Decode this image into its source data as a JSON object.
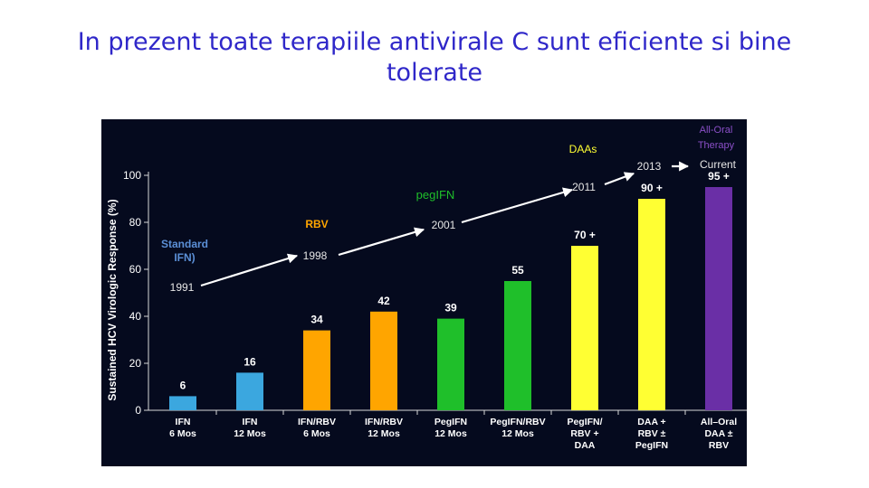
{
  "slide": {
    "title_line1": "In prezent toate terapiile antivirale C sunt eficiente si bine",
    "title_line2": "tolerate",
    "title_color": "#2f27c9"
  },
  "chart_data": {
    "type": "bar",
    "ylabel": "Sustained HCV Virologic Response (%)",
    "ylim": [
      0,
      100
    ],
    "yticks": [
      0,
      20,
      40,
      60,
      80,
      100
    ],
    "background": "#050a1e",
    "categories": [
      {
        "line1": "IFN",
        "line2": "6 Mos",
        "line3": ""
      },
      {
        "line1": "IFN",
        "line2": "12 Mos",
        "line3": ""
      },
      {
        "line1": "IFN/RBV",
        "line2": "6 Mos",
        "line3": ""
      },
      {
        "line1": "IFN/RBV",
        "line2": "12 Mos",
        "line3": ""
      },
      {
        "line1": "PegIFN",
        "line2": "12 Mos",
        "line3": ""
      },
      {
        "line1": "PegIFN/RBV",
        "line2": "12 Mos",
        "line3": ""
      },
      {
        "line1": "PegIFN/",
        "line2": "RBV +",
        "line3": "DAA"
      },
      {
        "line1": "DAA +",
        "line2": "RBV ±",
        "line3": "PegIFN"
      },
      {
        "line1": "All–Oral",
        "line2": "DAA ±",
        "line3": "RBV"
      }
    ],
    "values": [
      6,
      16,
      34,
      42,
      39,
      55,
      70,
      90,
      95
    ],
    "value_labels": [
      "6",
      "16",
      "34",
      "42",
      "39",
      "55",
      "70 +",
      "90 +",
      "95 +"
    ],
    "bar_colors": [
      "#3ba7df",
      "#3ba7df",
      "#ffa500",
      "#ffa500",
      "#1fbf2a",
      "#1fbf2a",
      "#ffff33",
      "#ffff33",
      "#6a2fa6"
    ],
    "annotations": [
      {
        "text": "Standard",
        "color": "#5b8fd6"
      },
      {
        "text": "IFN)",
        "color": "#5b8fd6"
      },
      {
        "text": "1991",
        "color": "#e6e6e6"
      },
      {
        "text": "RBV",
        "color": "#ffa500"
      },
      {
        "text": "1998",
        "color": "#e6e6e6"
      },
      {
        "text": "pegIFN",
        "color": "#1fbf2a"
      },
      {
        "text": "2001",
        "color": "#e6e6e6"
      },
      {
        "text": "DAAs",
        "color": "#ffff33"
      },
      {
        "text": "2011",
        "color": "#e6e6e6"
      },
      {
        "text": "2013",
        "color": "#e6e6e6"
      },
      {
        "text": "All-Oral",
        "color": "#8a4fc7"
      },
      {
        "text": "Therapy",
        "color": "#8a4fc7"
      },
      {
        "text": "Current",
        "color": "#e6e6e6"
      }
    ],
    "text_color": "#ffffff",
    "axis_color": "#d8d8d8"
  }
}
